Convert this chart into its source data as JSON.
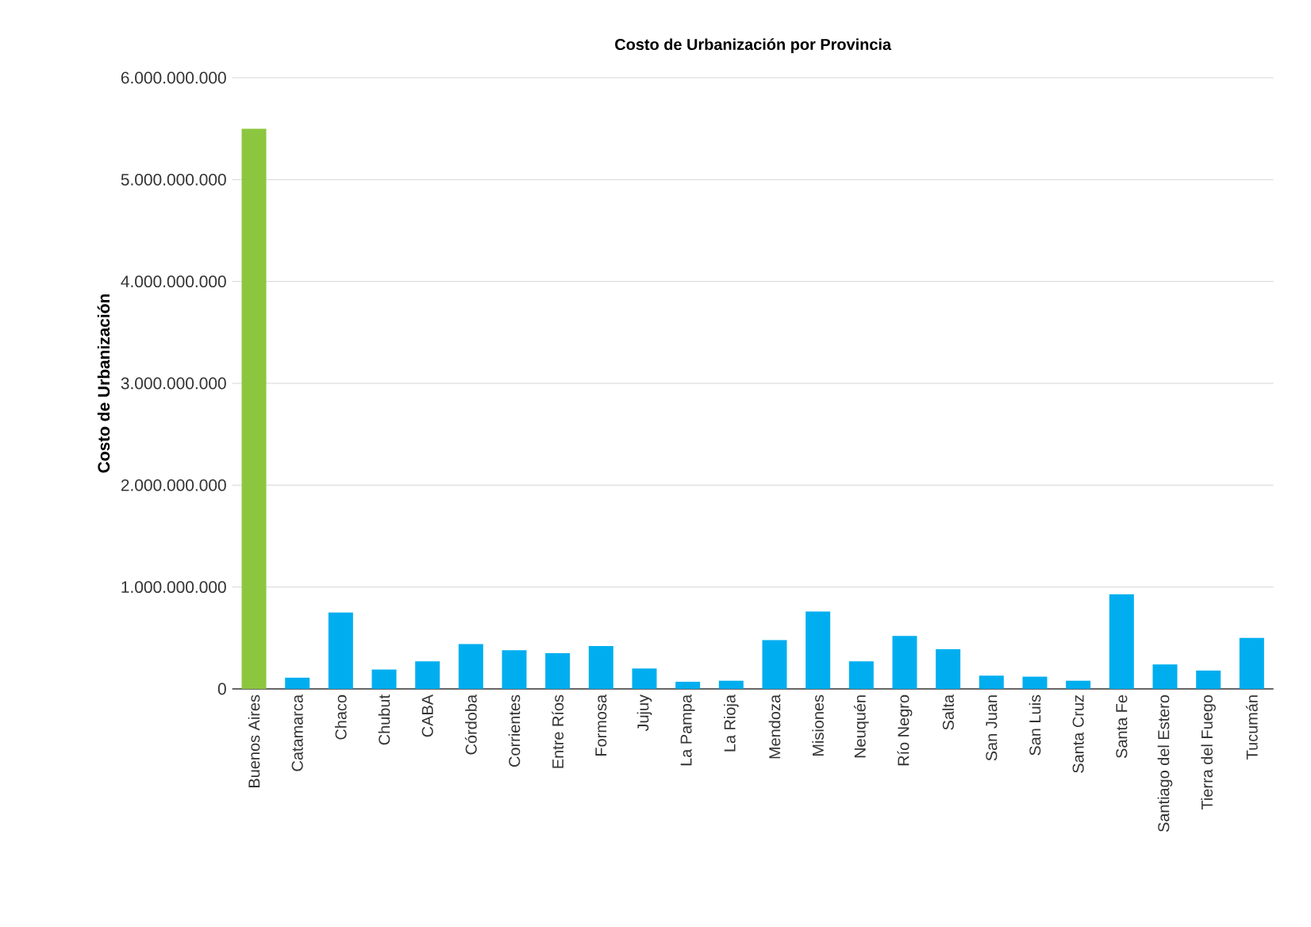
{
  "chart_data": {
    "type": "bar",
    "title": "Costo de Urbanización por Provincia",
    "ylabel": "Costo de Urbanización",
    "categories": [
      "Buenos Aires",
      "Catamarca",
      "Chaco",
      "Chubut",
      "CABA",
      "Córdoba",
      "Corrientes",
      "Entre Ríos",
      "Formosa",
      "Jujuy",
      "La Pampa",
      "La Rioja",
      "Mendoza",
      "Misiones",
      "Neuquén",
      "Río Negro",
      "Salta",
      "San Juan",
      "San Luis",
      "Santa Cruz",
      "Santa Fe",
      "Santiago del Estero",
      "Tierra del Fuego",
      "Tucumán"
    ],
    "values": [
      5500000000,
      110000000,
      750000000,
      190000000,
      270000000,
      440000000,
      380000000,
      350000000,
      420000000,
      200000000,
      70000000,
      80000000,
      480000000,
      760000000,
      270000000,
      520000000,
      390000000,
      130000000,
      120000000,
      80000000,
      930000000,
      240000000,
      180000000,
      500000000
    ],
    "colors": [
      "#8cc63f",
      "#00aeef",
      "#00aeef",
      "#00aeef",
      "#00aeef",
      "#00aeef",
      "#00aeef",
      "#00aeef",
      "#00aeef",
      "#00aeef",
      "#00aeef",
      "#00aeef",
      "#00aeef",
      "#00aeef",
      "#00aeef",
      "#00aeef",
      "#00aeef",
      "#00aeef",
      "#00aeef",
      "#00aeef",
      "#00aeef",
      "#00aeef",
      "#00aeef",
      "#00aeef"
    ],
    "ylim": [
      0,
      6000000000
    ],
    "yticks": [
      {
        "value": 0,
        "label": "0"
      },
      {
        "value": 1000000000,
        "label": "1.000.000.000"
      },
      {
        "value": 2000000000,
        "label": "2.000.000.000"
      },
      {
        "value": 3000000000,
        "label": "3.000.000.000"
      },
      {
        "value": 4000000000,
        "label": "4.000.000.000"
      },
      {
        "value": 5000000000,
        "label": "5.000.000.000"
      },
      {
        "value": 6000000000,
        "label": "6.000.000.000"
      }
    ],
    "grid": "y"
  }
}
